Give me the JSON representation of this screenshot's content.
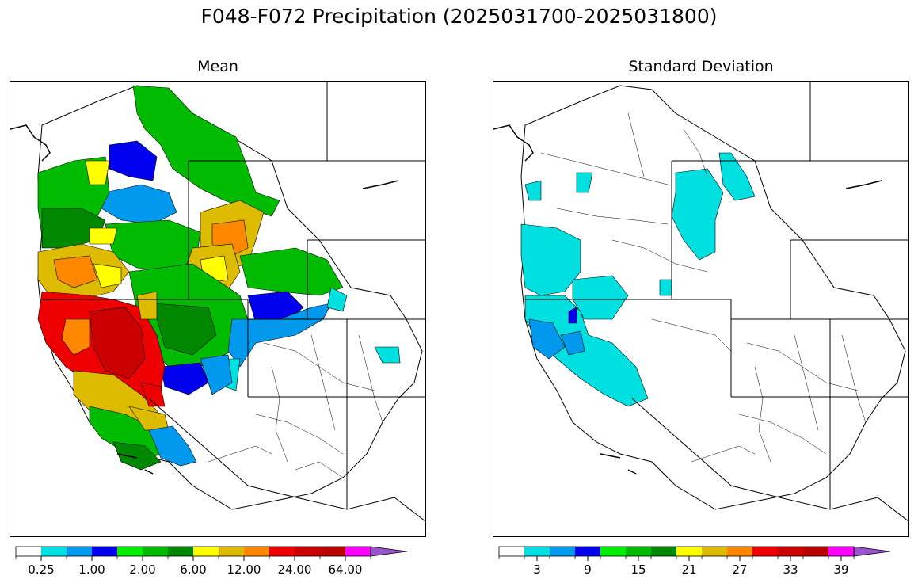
{
  "title": "F048-F072 Precipitation (2025031700-2025031800)",
  "panels": [
    {
      "id": "mean",
      "title": "Mean",
      "colorbar": {
        "colors": [
          "#ffffff",
          "#00e0e0",
          "#0099ee",
          "#0000ee",
          "#00ee00",
          "#00bb00",
          "#008800",
          "#ffff00",
          "#ddbb00",
          "#ff8800",
          "#ee0000",
          "#cc0000",
          "#bb0000",
          "#ff00ff",
          "#9955cc"
        ],
        "extend": "max",
        "tick_labels": [
          "0.25",
          "1.00",
          "2.00",
          "6.00",
          "12.00",
          "24.00",
          "64.00"
        ]
      }
    },
    {
      "id": "std",
      "title": "Standard Deviation",
      "colorbar": {
        "colors": [
          "#ffffff",
          "#00e0e0",
          "#0099ee",
          "#0000ee",
          "#00ee00",
          "#00bb00",
          "#008800",
          "#ffff00",
          "#ddbb00",
          "#ff8800",
          "#ee0000",
          "#cc0000",
          "#bb0000",
          "#ff00ff",
          "#9955cc"
        ],
        "extend": "max",
        "tick_labels": [
          "3",
          "9",
          "15",
          "21",
          "27",
          "33",
          "39"
        ]
      }
    }
  ],
  "legend": {
    "white": "#ffffff",
    "cyan": "#00e0e0",
    "light_blue": "#0099ee",
    "blue": "#0000ee",
    "bright_green": "#00ee00",
    "green": "#00bb00",
    "dark_green": "#008800",
    "yellow": "#ffff00",
    "gold": "#ddbb00",
    "orange": "#ff8800",
    "red": "#ee0000",
    "dark_red": "#cc0000",
    "crimson": "#bb0000",
    "magenta": "#ff00ff",
    "purple": "#9955cc"
  }
}
